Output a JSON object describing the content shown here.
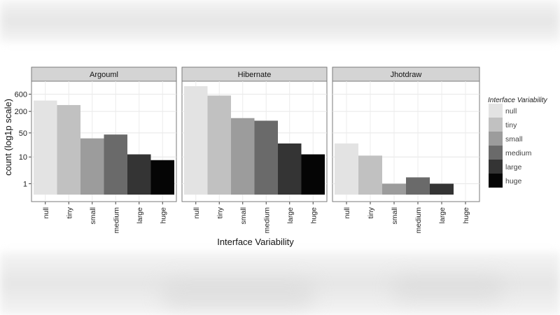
{
  "chart_data": {
    "type": "bar",
    "facets": [
      "Argouml",
      "Hibernate",
      "Jhotdraw"
    ],
    "categories": [
      "null",
      "tiny",
      "small",
      "medium",
      "large",
      "huge"
    ],
    "scale": "log1p",
    "ylabel": "count (log1p scale)",
    "xlabel": "Interface Variability",
    "y_ticks": [
      1,
      10,
      50,
      200,
      600
    ],
    "y_tick_labels": [
      "1",
      "10",
      "50",
      "200",
      "600"
    ],
    "ylim": [
      0,
      1150
    ],
    "series": [
      {
        "name": "Argouml",
        "values": [
          400,
          300,
          35,
          45,
          12,
          8
        ]
      },
      {
        "name": "Hibernate",
        "values": [
          1000,
          550,
          130,
          110,
          25,
          12
        ]
      },
      {
        "name": "Jhotdraw",
        "values": [
          25,
          11,
          1,
          2,
          1,
          0
        ]
      }
    ],
    "legend": {
      "title": "Interface Variability",
      "position": "right",
      "entries": [
        "null",
        "tiny",
        "small",
        "medium",
        "large",
        "huge"
      ]
    },
    "colors": [
      "#e3e3e3",
      "#c1c1c1",
      "#9c9c9c",
      "#6a6a6a",
      "#343434",
      "#050505"
    ]
  }
}
